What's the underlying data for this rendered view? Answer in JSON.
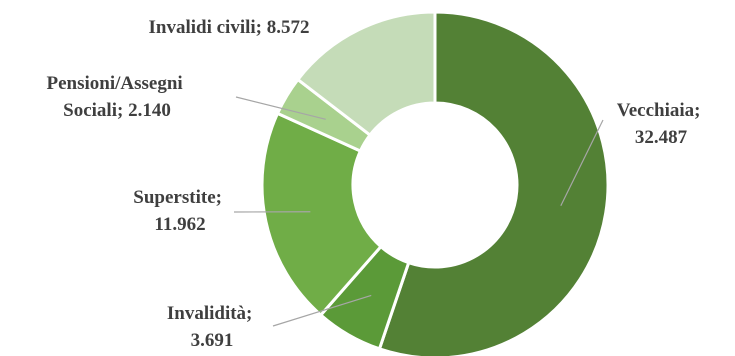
{
  "chart_data": {
    "type": "pie",
    "variant": "donut",
    "title": "",
    "legend": "none",
    "slices": [
      {
        "name": "Vecchiaia",
        "value": 32487,
        "value_label": "32.487",
        "color": "#538135"
      },
      {
        "name": "Invalidità",
        "value": 3691,
        "value_label": "3.691",
        "color": "#5b9a38"
      },
      {
        "name": "Superstite",
        "value": 11962,
        "value_label": "11.962",
        "color": "#70ad47"
      },
      {
        "name": "Pensioni/Assegni Sociali",
        "value": 2140,
        "value_label": "2.140",
        "color": "#a9d18e"
      },
      {
        "name": "Invalidi civili",
        "value": 8572,
        "value_label": "8.572",
        "color": "#c5dcb8"
      }
    ],
    "labels": [
      {
        "lines": [
          "Vecchiaia;",
          "32.487"
        ]
      },
      {
        "lines": [
          "Invalidità;",
          "3.691"
        ]
      },
      {
        "lines": [
          "Superstite;",
          "11.962"
        ]
      },
      {
        "lines": [
          "Pensioni/Assegni",
          "Sociali;  2.140"
        ]
      },
      {
        "lines": [
          "Invalidi civili;  8.572"
        ]
      }
    ]
  }
}
